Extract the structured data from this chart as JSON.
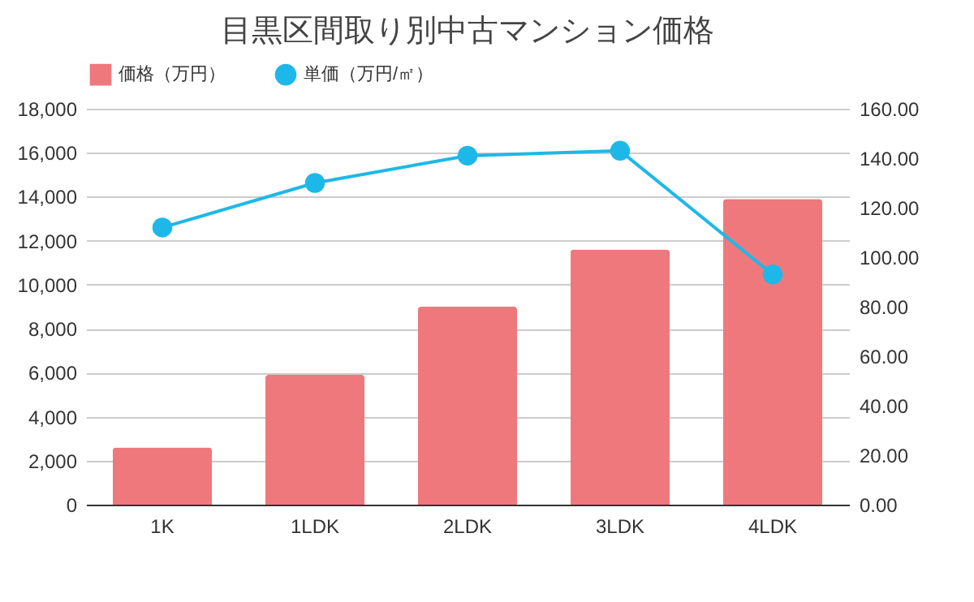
{
  "chart_data": {
    "type": "bar",
    "title": "目黒区間取り別中古マンション価格",
    "categories": [
      "1K",
      "1LDK",
      "2LDK",
      "3LDK",
      "4LDK"
    ],
    "series": [
      {
        "name": "価格（万円）",
        "color": "#ef787c",
        "values": [
          2600,
          5900,
          9000,
          11600,
          13900
        ]
      },
      {
        "name": "単価（万円/㎡）",
        "type": "line",
        "axis": "y2",
        "color": "#1eb8e8",
        "values": [
          112,
          130,
          141,
          143,
          93
        ]
      }
    ],
    "ylim": [
      0,
      18000
    ],
    "yticks": [
      {
        "value": 0,
        "label": "0"
      },
      {
        "value": 2000,
        "label": "2,000"
      },
      {
        "value": 4000,
        "label": "4,000"
      },
      {
        "value": 6000,
        "label": "6,000"
      },
      {
        "value": 8000,
        "label": "8,000"
      },
      {
        "value": 10000,
        "label": "10,000"
      },
      {
        "value": 12000,
        "label": "12,000"
      },
      {
        "value": 14000,
        "label": "14,000"
      },
      {
        "value": 16000,
        "label": "16,000"
      },
      {
        "value": 18000,
        "label": "18,000"
      }
    ],
    "y2lim": [
      0,
      160
    ],
    "y2ticks": [
      {
        "value": 0,
        "label": "0.00"
      },
      {
        "value": 20,
        "label": "20.00"
      },
      {
        "value": 40,
        "label": "40.00"
      },
      {
        "value": 60,
        "label": "60.00"
      },
      {
        "value": 80,
        "label": "80.00"
      },
      {
        "value": 100,
        "label": "100.00"
      },
      {
        "value": 120,
        "label": "120.00"
      },
      {
        "value": 140,
        "label": "140.00"
      },
      {
        "value": 160,
        "label": "160.00"
      }
    ],
    "grid": "y",
    "legend": "top",
    "marker": "circle"
  }
}
